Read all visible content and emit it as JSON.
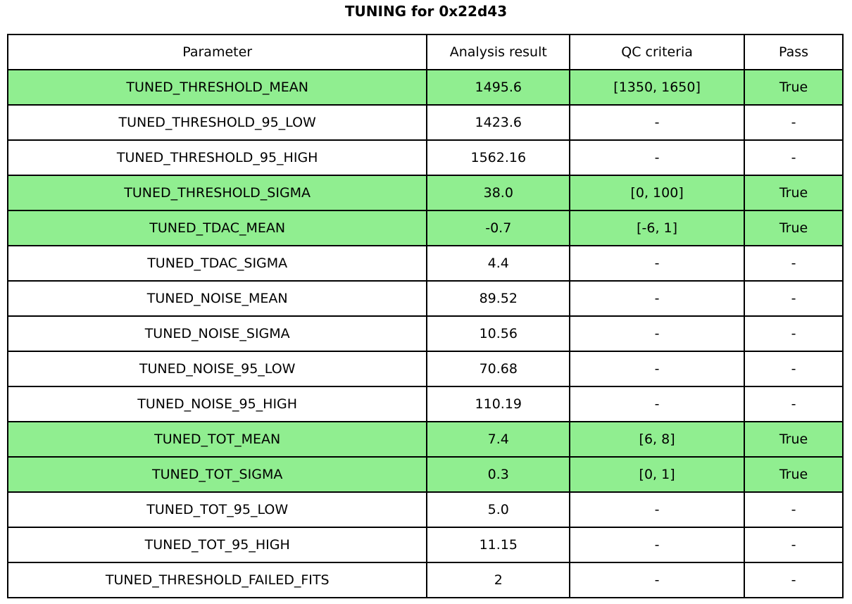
{
  "title": "TUNING for 0x22d43",
  "colors": {
    "highlight": "#90ee90",
    "border": "#000000",
    "text": "#000000",
    "background": "#ffffff"
  },
  "chart_data": {
    "type": "table",
    "title": "TUNING for 0x22d43",
    "columns": [
      "Parameter",
      "Analysis result",
      "QC criteria",
      "Pass"
    ],
    "rows": [
      {
        "parameter": "TUNED_THRESHOLD_MEAN",
        "result": "1495.6",
        "criteria": "[1350, 1650]",
        "pass": "True",
        "highlight": true
      },
      {
        "parameter": "TUNED_THRESHOLD_95_LOW",
        "result": "1423.6",
        "criteria": "-",
        "pass": "-",
        "highlight": false
      },
      {
        "parameter": "TUNED_THRESHOLD_95_HIGH",
        "result": "1562.16",
        "criteria": "-",
        "pass": "-",
        "highlight": false
      },
      {
        "parameter": "TUNED_THRESHOLD_SIGMA",
        "result": "38.0",
        "criteria": "[0, 100]",
        "pass": "True",
        "highlight": true
      },
      {
        "parameter": "TUNED_TDAC_MEAN",
        "result": "-0.7",
        "criteria": "[-6, 1]",
        "pass": "True",
        "highlight": true
      },
      {
        "parameter": "TUNED_TDAC_SIGMA",
        "result": "4.4",
        "criteria": "-",
        "pass": "-",
        "highlight": false
      },
      {
        "parameter": "TUNED_NOISE_MEAN",
        "result": "89.52",
        "criteria": "-",
        "pass": "-",
        "highlight": false
      },
      {
        "parameter": "TUNED_NOISE_SIGMA",
        "result": "10.56",
        "criteria": "-",
        "pass": "-",
        "highlight": false
      },
      {
        "parameter": "TUNED_NOISE_95_LOW",
        "result": "70.68",
        "criteria": "-",
        "pass": "-",
        "highlight": false
      },
      {
        "parameter": "TUNED_NOISE_95_HIGH",
        "result": "110.19",
        "criteria": "-",
        "pass": "-",
        "highlight": false
      },
      {
        "parameter": "TUNED_TOT_MEAN",
        "result": "7.4",
        "criteria": "[6, 8]",
        "pass": "True",
        "highlight": true
      },
      {
        "parameter": "TUNED_TOT_SIGMA",
        "result": "0.3",
        "criteria": "[0, 1]",
        "pass": "True",
        "highlight": true
      },
      {
        "parameter": "TUNED_TOT_95_LOW",
        "result": "5.0",
        "criteria": "-",
        "pass": "-",
        "highlight": false
      },
      {
        "parameter": "TUNED_TOT_95_HIGH",
        "result": "11.15",
        "criteria": "-",
        "pass": "-",
        "highlight": false
      },
      {
        "parameter": "TUNED_THRESHOLD_FAILED_FITS",
        "result": "2",
        "criteria": "-",
        "pass": "-",
        "highlight": false
      }
    ]
  }
}
